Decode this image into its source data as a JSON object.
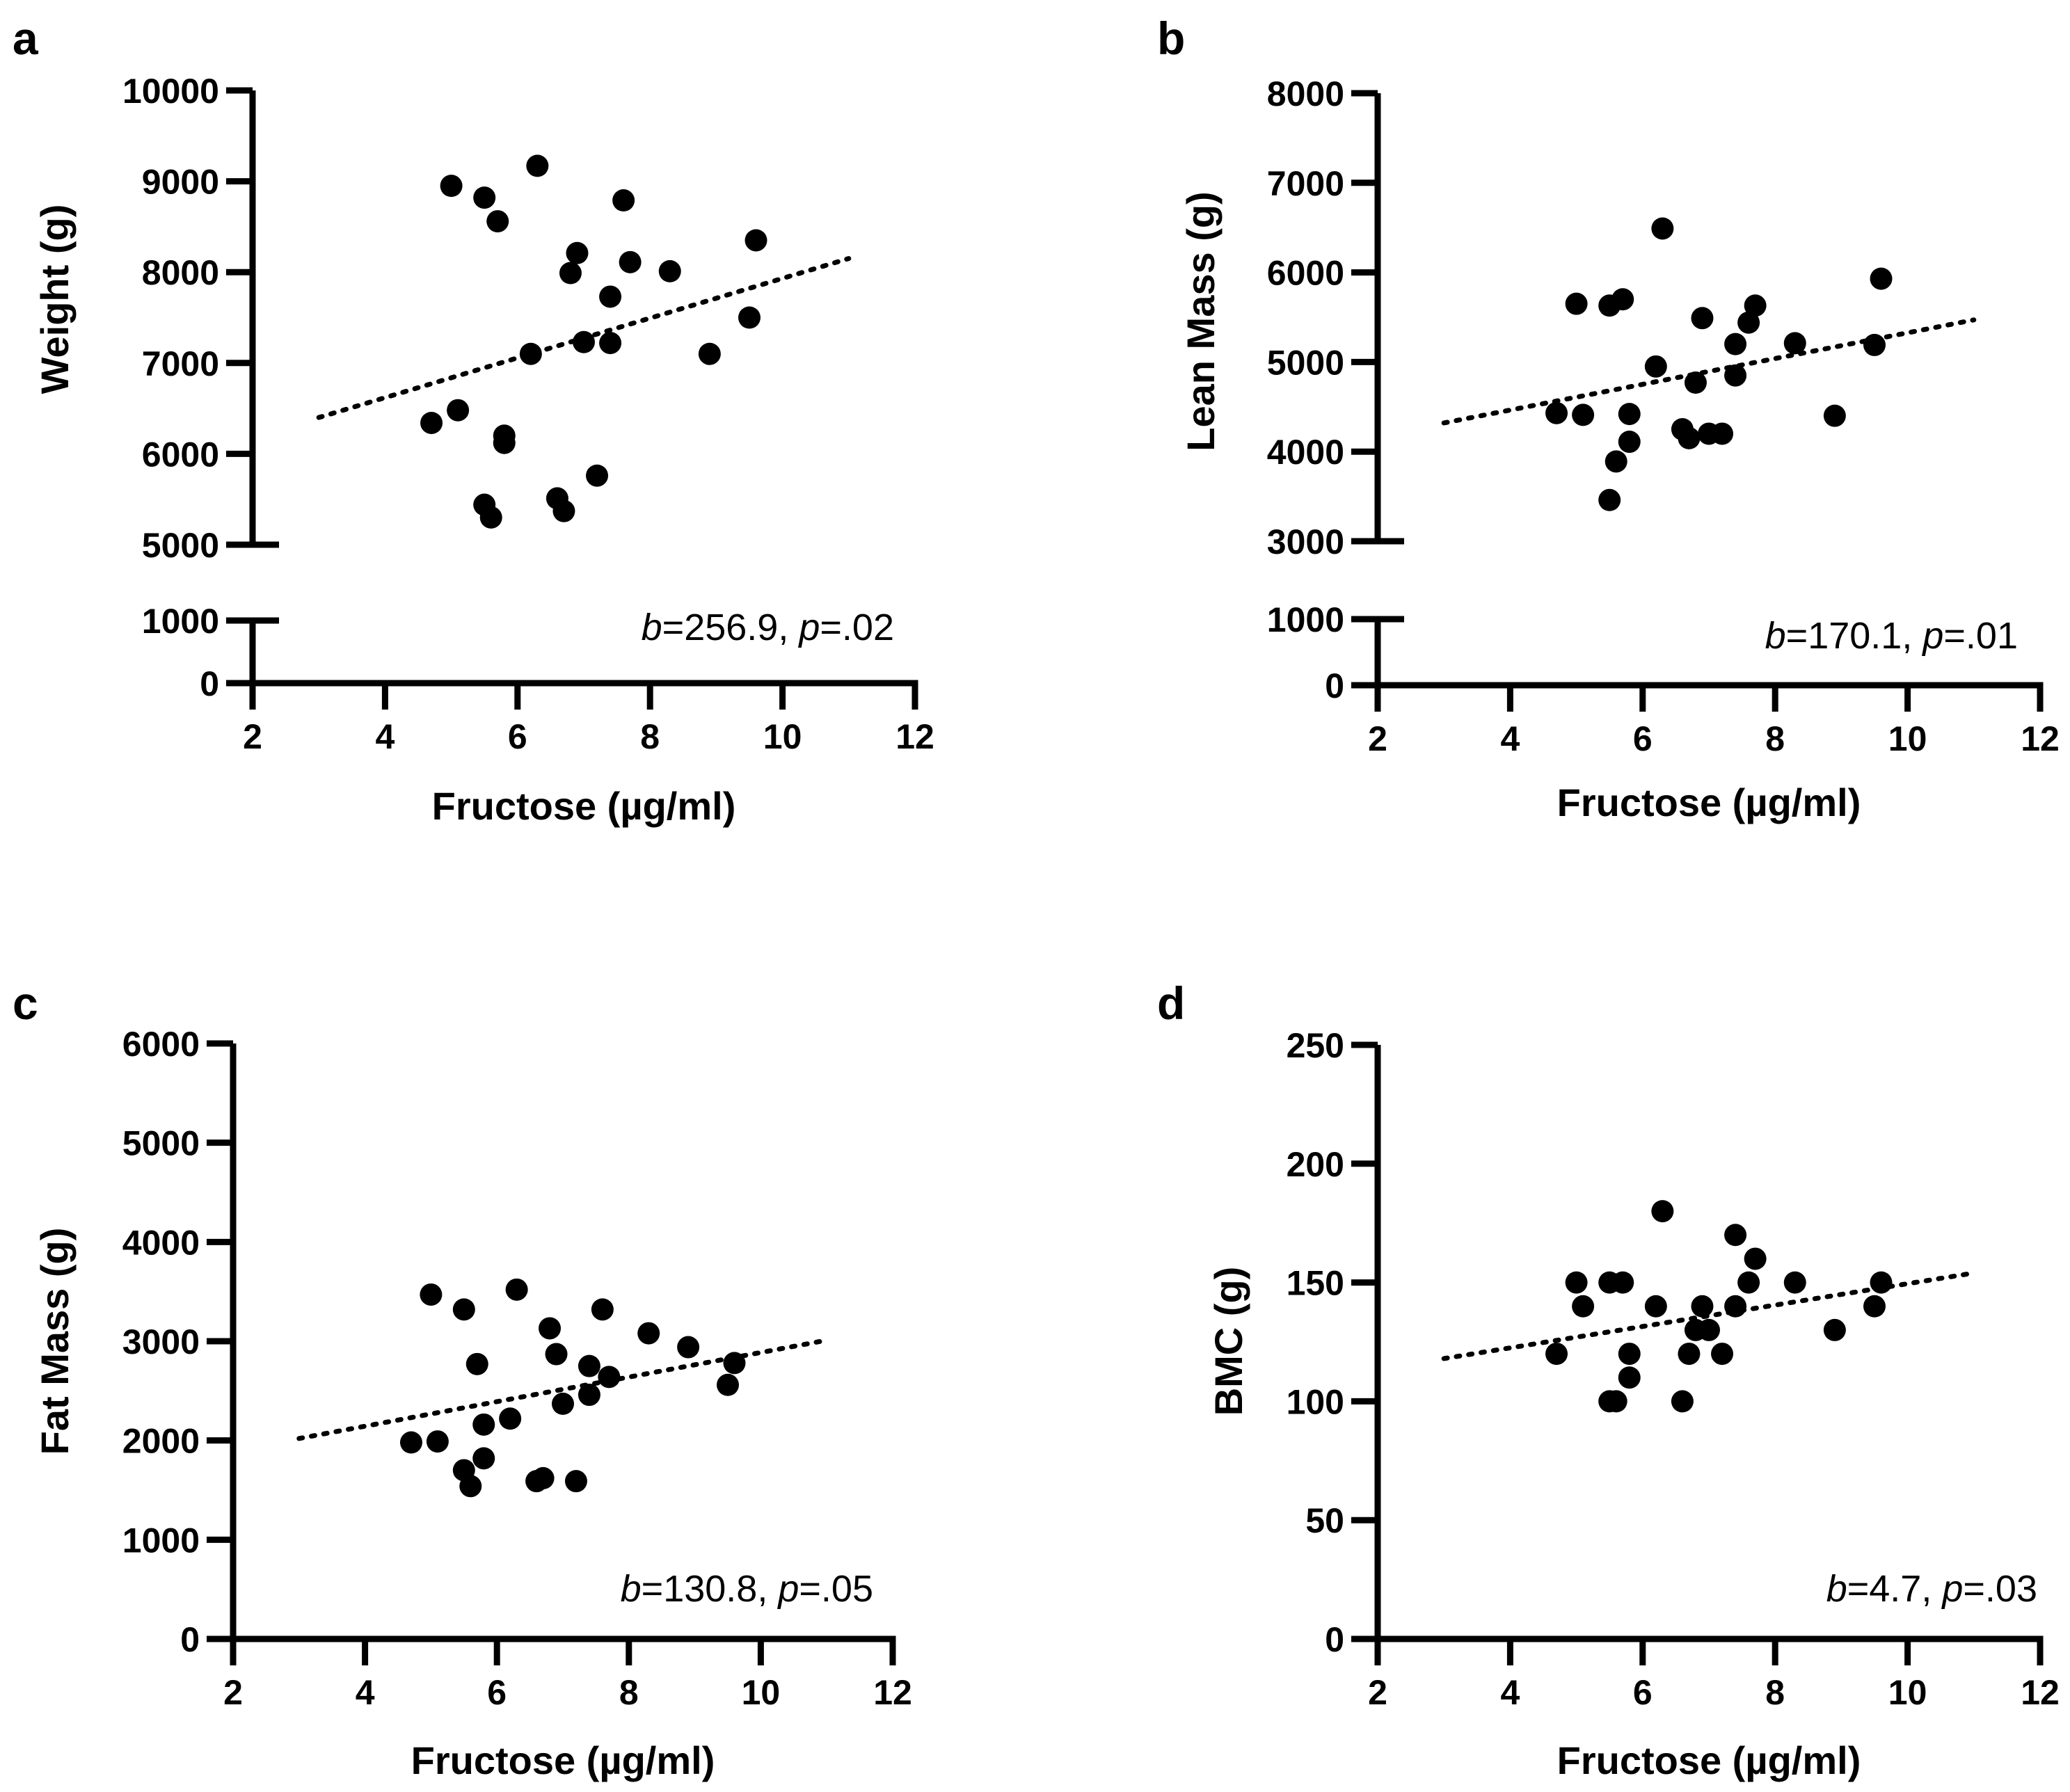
{
  "chart_data": [
    {
      "type": "scatter",
      "panel": "a",
      "xlabel": "Fructose (µg/ml)",
      "ylabel": "Weight (g)",
      "xlim": [
        2,
        12
      ],
      "xticks": [
        2,
        4,
        6,
        8,
        10,
        12
      ],
      "y_segments": [
        {
          "range": [
            0,
            1000
          ],
          "ticks": [
            0,
            1000
          ]
        },
        {
          "range": [
            5000,
            10000
          ],
          "ticks": [
            5000,
            6000,
            7000,
            8000,
            9000,
            10000
          ]
        }
      ],
      "annotation": {
        "b_symbol": "b",
        "b_value": "=256.9, ",
        "p_symbol": "p",
        "p_value": "=.02"
      },
      "fit_line": {
        "x": [
          3,
          11
        ],
        "y": [
          6400,
          8150
        ]
      },
      "points": [
        [
          4.7,
          6340
        ],
        [
          5.0,
          8950
        ],
        [
          5.1,
          6480
        ],
        [
          5.5,
          8820
        ],
        [
          5.5,
          5440
        ],
        [
          5.6,
          5300
        ],
        [
          5.7,
          8560
        ],
        [
          5.8,
          6200
        ],
        [
          5.8,
          6120
        ],
        [
          6.2,
          7100
        ],
        [
          6.3,
          9170
        ],
        [
          6.6,
          5510
        ],
        [
          6.7,
          5370
        ],
        [
          6.8,
          7990
        ],
        [
          6.9,
          8210
        ],
        [
          7.0,
          7230
        ],
        [
          7.2,
          5760
        ],
        [
          7.4,
          7220
        ],
        [
          7.4,
          7730
        ],
        [
          7.6,
          8790
        ],
        [
          7.7,
          8110
        ],
        [
          8.3,
          8010
        ],
        [
          8.9,
          7100
        ],
        [
          9.5,
          7500
        ],
        [
          9.6,
          8350
        ]
      ]
    },
    {
      "type": "scatter",
      "panel": "b",
      "xlabel": "Fructose (µg/ml)",
      "ylabel": "Lean Mass (g)",
      "xlim": [
        2,
        12
      ],
      "xticks": [
        2,
        4,
        6,
        8,
        10,
        12
      ],
      "y_segments": [
        {
          "range": [
            0,
            1000
          ],
          "ticks": [
            0,
            1000
          ]
        },
        {
          "range": [
            3000,
            8000
          ],
          "ticks": [
            3000,
            4000,
            5000,
            6000,
            7000,
            8000
          ]
        }
      ],
      "annotation": {
        "b_symbol": "b",
        "b_value": "=170.1, ",
        "p_symbol": "p",
        "p_value": "=.01"
      },
      "fit_line": {
        "x": [
          3,
          11
        ],
        "y": [
          4320,
          5470
        ]
      },
      "points": [
        [
          4.7,
          4430
        ],
        [
          5.0,
          5650
        ],
        [
          5.1,
          4410
        ],
        [
          5.5,
          5630
        ],
        [
          5.5,
          3460
        ],
        [
          5.6,
          3890
        ],
        [
          5.7,
          5700
        ],
        [
          5.8,
          4420
        ],
        [
          5.8,
          4110
        ],
        [
          6.2,
          4950
        ],
        [
          6.3,
          6490
        ],
        [
          6.6,
          4250
        ],
        [
          6.7,
          4150
        ],
        [
          6.8,
          4770
        ],
        [
          6.9,
          5490
        ],
        [
          7.0,
          4200
        ],
        [
          7.2,
          4200
        ],
        [
          7.4,
          4850
        ],
        [
          7.4,
          5200
        ],
        [
          7.6,
          5440
        ],
        [
          7.7,
          5630
        ],
        [
          8.3,
          5210
        ],
        [
          8.9,
          4400
        ],
        [
          9.5,
          5190
        ],
        [
          9.6,
          5930
        ]
      ]
    },
    {
      "type": "scatter",
      "panel": "c",
      "xlabel": "Fructose (µg/ml)",
      "ylabel": "Fat Mass (g)",
      "xlim": [
        2,
        12
      ],
      "xticks": [
        2,
        4,
        6,
        8,
        10,
        12
      ],
      "y_segments": [
        {
          "range": [
            0,
            6000
          ],
          "ticks": [
            0,
            1000,
            2000,
            3000,
            4000,
            5000,
            6000
          ]
        }
      ],
      "annotation": {
        "b_symbol": "b",
        "b_value": "=130.8, ",
        "p_symbol": "p",
        "p_value": "=.05"
      },
      "fit_line": {
        "x": [
          3,
          11
        ],
        "y": [
          2020,
          3010
        ]
      },
      "points": [
        [
          4.7,
          1980
        ],
        [
          5.0,
          3470
        ],
        [
          5.1,
          1990
        ],
        [
          5.5,
          3320
        ],
        [
          5.5,
          1700
        ],
        [
          5.6,
          1540
        ],
        [
          5.7,
          2770
        ],
        [
          5.8,
          2160
        ],
        [
          5.8,
          1820
        ],
        [
          6.2,
          2220
        ],
        [
          6.3,
          3520
        ],
        [
          6.6,
          1590
        ],
        [
          6.7,
          1620
        ],
        [
          6.8,
          3130
        ],
        [
          6.9,
          2870
        ],
        [
          7.0,
          2370
        ],
        [
          7.2,
          1590
        ],
        [
          7.4,
          2460
        ],
        [
          7.4,
          2750
        ],
        [
          7.6,
          3320
        ],
        [
          7.7,
          2640
        ],
        [
          8.3,
          3080
        ],
        [
          8.9,
          2940
        ],
        [
          9.5,
          2560
        ],
        [
          9.6,
          2780
        ]
      ]
    },
    {
      "type": "scatter",
      "panel": "d",
      "xlabel": "Fructose (µg/ml)",
      "ylabel": "BMC (g)",
      "xlim": [
        2,
        12
      ],
      "xticks": [
        2,
        4,
        6,
        8,
        10,
        12
      ],
      "y_segments": [
        {
          "range": [
            0,
            250
          ],
          "ticks": [
            0,
            50,
            100,
            150,
            200,
            250
          ]
        }
      ],
      "annotation": {
        "b_symbol": "b",
        "b_value": "=4.7, ",
        "p_symbol": "p",
        "p_value": "=.03"
      },
      "fit_line": {
        "x": [
          3,
          11
        ],
        "y": [
          118,
          154
        ]
      },
      "points": [
        [
          4.7,
          120
        ],
        [
          5.0,
          150
        ],
        [
          5.1,
          140
        ],
        [
          5.5,
          150
        ],
        [
          5.5,
          100
        ],
        [
          5.6,
          100
        ],
        [
          5.7,
          150
        ],
        [
          5.8,
          120
        ],
        [
          5.8,
          110
        ],
        [
          6.2,
          140
        ],
        [
          6.3,
          180
        ],
        [
          6.6,
          100
        ],
        [
          6.7,
          120
        ],
        [
          6.8,
          130
        ],
        [
          6.9,
          140
        ],
        [
          7.0,
          130
        ],
        [
          7.2,
          120
        ],
        [
          7.4,
          140
        ],
        [
          7.4,
          170
        ],
        [
          7.6,
          150
        ],
        [
          7.7,
          160
        ],
        [
          8.3,
          150
        ],
        [
          8.9,
          130
        ],
        [
          9.5,
          140
        ],
        [
          9.6,
          150
        ]
      ]
    }
  ]
}
